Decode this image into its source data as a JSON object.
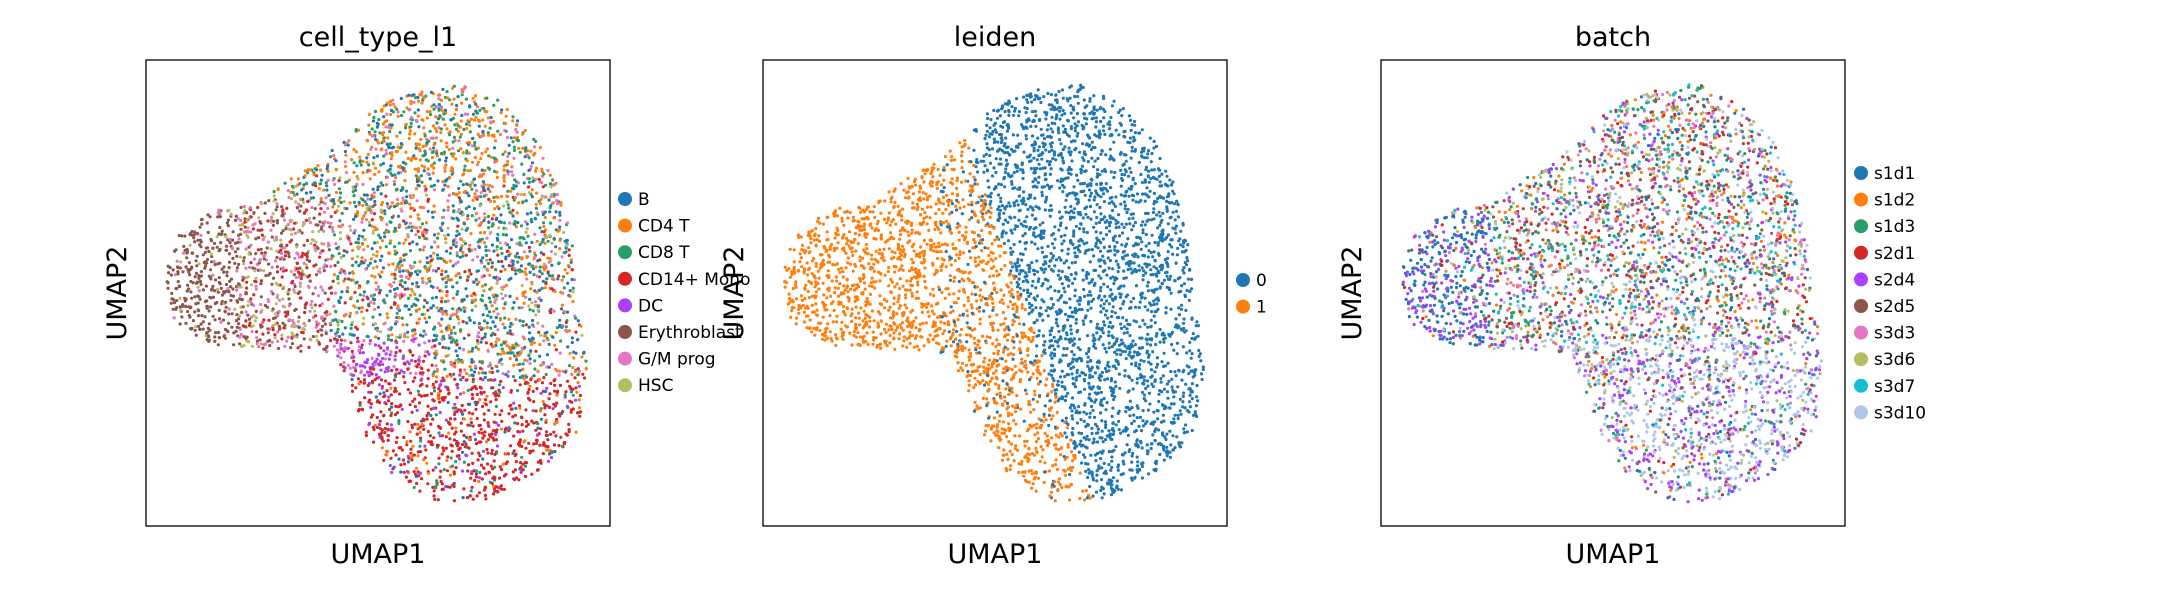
{
  "chart_data": [
    {
      "type": "scatter",
      "title": "cell_type_l1",
      "xlabel": "UMAP1",
      "ylabel": "UMAP2",
      "grid": false,
      "legend_position": "right",
      "ticks": "none",
      "categories": [
        "B",
        "CD4 T",
        "CD8 T",
        "CD14+ Mono",
        "DC",
        "Erythroblast",
        "G/M prog",
        "HSC"
      ],
      "colors": [
        "#1f77b4",
        "#ff7f0e",
        "#279e68",
        "#d62728",
        "#aa40fc",
        "#8c564b",
        "#e377c2",
        "#b5bd61"
      ]
    },
    {
      "type": "scatter",
      "title": "leiden",
      "xlabel": "UMAP1",
      "ylabel": "UMAP2",
      "grid": false,
      "legend_position": "right",
      "ticks": "none",
      "categories": [
        "0",
        "1"
      ],
      "colors": [
        "#1f77b4",
        "#ff7f0e"
      ]
    },
    {
      "type": "scatter",
      "title": "batch",
      "xlabel": "UMAP1",
      "ylabel": "UMAP2",
      "grid": false,
      "legend_position": "right",
      "ticks": "none",
      "categories": [
        "s1d1",
        "s1d2",
        "s1d3",
        "s2d1",
        "s2d4",
        "s2d5",
        "s3d3",
        "s3d6",
        "s3d7",
        "s3d10"
      ],
      "colors": [
        "#1f77b4",
        "#ff7f0e",
        "#279e68",
        "#d62728",
        "#aa40fc",
        "#8c564b",
        "#e377c2",
        "#b5bd61",
        "#17becf",
        "#aec7e8"
      ]
    }
  ]
}
